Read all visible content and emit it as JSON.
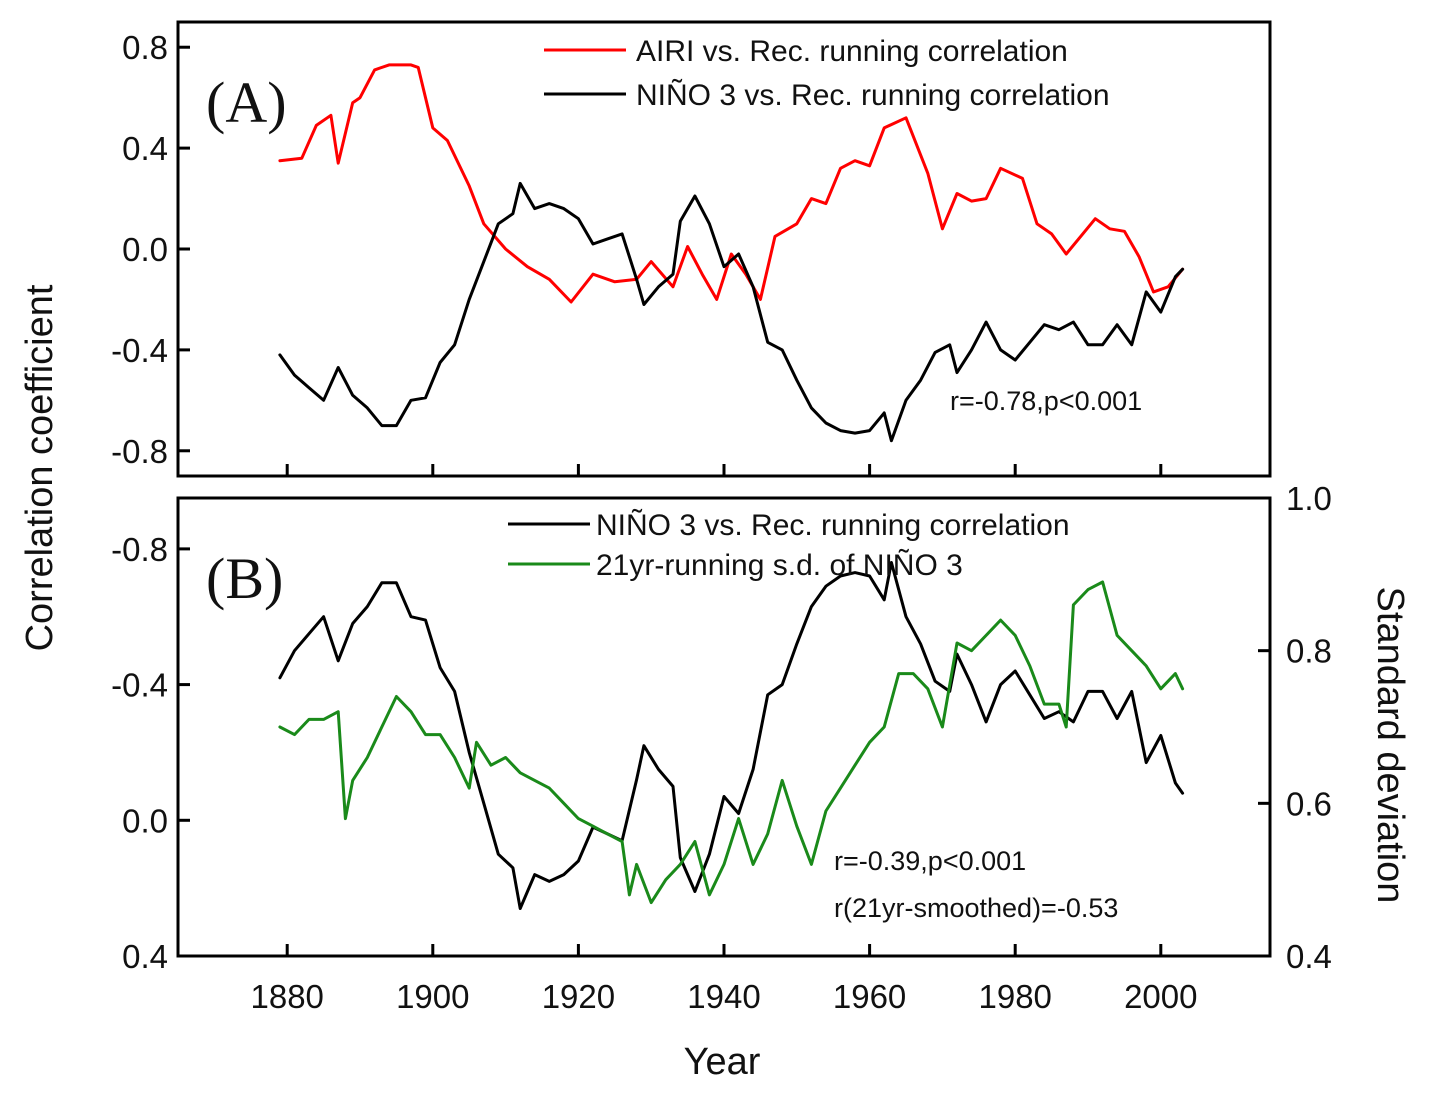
{
  "chart_data": [
    {
      "panel_label": "(A)",
      "type": "line",
      "xlim": [
        1865,
        2015
      ],
      "ylim": [
        -0.9,
        0.9
      ],
      "y_inverted": false,
      "yticks": [
        "0.8",
        "0.4",
        "0.0",
        "-0.4",
        "-0.8"
      ],
      "ytick_values": [
        0.8,
        0.4,
        0.0,
        -0.4,
        -0.8
      ],
      "annotation": "r=-0.78,p<0.001",
      "legend_position": "top-right",
      "series": [
        {
          "name": "AIRI vs. Rec. running correlation",
          "color": "#ff0000",
          "x": [
            1879,
            1882,
            1884,
            1886,
            1887,
            1889,
            1890,
            1892,
            1894,
            1897,
            1898,
            1900,
            1902,
            1905,
            1907,
            1910,
            1913,
            1916,
            1919,
            1922,
            1925,
            1928,
            1930,
            1933,
            1935,
            1937,
            1939,
            1941,
            1943,
            1945,
            1947,
            1950,
            1952,
            1954,
            1956,
            1958,
            1960,
            1962,
            1965,
            1968,
            1970,
            1972,
            1974,
            1976,
            1978,
            1981,
            1983,
            1985,
            1987,
            1989,
            1991,
            1993,
            1995,
            1997,
            1999,
            2001,
            2003
          ],
          "y": [
            0.35,
            0.36,
            0.49,
            0.53,
            0.34,
            0.58,
            0.6,
            0.71,
            0.73,
            0.73,
            0.72,
            0.48,
            0.43,
            0.25,
            0.1,
            0.0,
            -0.07,
            -0.12,
            -0.21,
            -0.1,
            -0.13,
            -0.12,
            -0.05,
            -0.15,
            0.01,
            -0.1,
            -0.2,
            -0.02,
            -0.1,
            -0.2,
            0.05,
            0.1,
            0.2,
            0.18,
            0.32,
            0.35,
            0.33,
            0.48,
            0.52,
            0.3,
            0.08,
            0.22,
            0.19,
            0.2,
            0.32,
            0.28,
            0.1,
            0.06,
            -0.02,
            0.05,
            0.12,
            0.08,
            0.07,
            -0.03,
            -0.17,
            -0.15,
            -0.08
          ]
        },
        {
          "name": "NIÑO 3 vs. Rec. running correlation",
          "color": "#000000",
          "x": [
            1879,
            1881,
            1883,
            1885,
            1887,
            1889,
            1891,
            1893,
            1895,
            1897,
            1899,
            1901,
            1903,
            1905,
            1907,
            1909,
            1911,
            1912,
            1914,
            1916,
            1918,
            1920,
            1922,
            1924,
            1926,
            1928,
            1929,
            1931,
            1933,
            1934,
            1936,
            1938,
            1940,
            1942,
            1944,
            1946,
            1948,
            1950,
            1952,
            1954,
            1956,
            1958,
            1960,
            1962,
            1963,
            1965,
            1967,
            1969,
            1971,
            1972,
            1974,
            1976,
            1978,
            1980,
            1982,
            1984,
            1986,
            1988,
            1990,
            1992,
            1994,
            1996,
            1998,
            2000,
            2002,
            2003
          ],
          "y": [
            -0.42,
            -0.5,
            -0.55,
            -0.6,
            -0.47,
            -0.58,
            -0.63,
            -0.7,
            -0.7,
            -0.6,
            -0.59,
            -0.45,
            -0.38,
            -0.2,
            -0.05,
            0.1,
            0.14,
            0.26,
            0.16,
            0.18,
            0.16,
            0.12,
            0.02,
            0.04,
            0.06,
            -0.12,
            -0.22,
            -0.15,
            -0.1,
            0.11,
            0.21,
            0.1,
            -0.07,
            -0.02,
            -0.15,
            -0.37,
            -0.4,
            -0.52,
            -0.63,
            -0.69,
            -0.72,
            -0.73,
            -0.72,
            -0.65,
            -0.76,
            -0.6,
            -0.52,
            -0.41,
            -0.38,
            -0.49,
            -0.4,
            -0.29,
            -0.4,
            -0.44,
            -0.37,
            -0.3,
            -0.32,
            -0.29,
            -0.38,
            -0.38,
            -0.3,
            -0.38,
            -0.17,
            -0.25,
            -0.11,
            -0.08
          ]
        }
      ]
    },
    {
      "panel_label": "(B)",
      "type": "line",
      "xlim": [
        1865,
        2015
      ],
      "ylim": [
        0.4,
        -0.95
      ],
      "y_inverted": true,
      "yticks": [
        "-0.8",
        "-0.4",
        "0.0",
        "0.4"
      ],
      "ytick_values": [
        -0.8,
        -0.4,
        0.0,
        0.4
      ],
      "ylim_right": [
        0.4,
        1.0
      ],
      "yticks_right": [
        "1.0",
        "0.8",
        "0.6",
        "0.4"
      ],
      "ytick_values_right": [
        1.0,
        0.8,
        0.6,
        0.4
      ],
      "annotation_lines": [
        "r=-0.39,p<0.001",
        "r(21yr-smoothed)=-0.53"
      ],
      "legend_position": "top-center",
      "series": [
        {
          "name": "NIÑO 3 vs. Rec. running correlation",
          "color": "#000000",
          "axis": "left",
          "x": [
            1879,
            1881,
            1883,
            1885,
            1887,
            1889,
            1891,
            1893,
            1895,
            1897,
            1899,
            1901,
            1903,
            1905,
            1907,
            1909,
            1911,
            1912,
            1914,
            1916,
            1918,
            1920,
            1922,
            1924,
            1926,
            1928,
            1929,
            1931,
            1933,
            1934,
            1936,
            1938,
            1940,
            1942,
            1944,
            1946,
            1948,
            1950,
            1952,
            1954,
            1956,
            1958,
            1960,
            1962,
            1963,
            1965,
            1967,
            1969,
            1971,
            1972,
            1974,
            1976,
            1978,
            1980,
            1982,
            1984,
            1986,
            1988,
            1990,
            1992,
            1994,
            1996,
            1998,
            2000,
            2002,
            2003
          ],
          "y": [
            -0.42,
            -0.5,
            -0.55,
            -0.6,
            -0.47,
            -0.58,
            -0.63,
            -0.7,
            -0.7,
            -0.6,
            -0.59,
            -0.45,
            -0.38,
            -0.2,
            -0.05,
            0.1,
            0.14,
            0.26,
            0.16,
            0.18,
            0.16,
            0.12,
            0.02,
            0.04,
            0.06,
            -0.12,
            -0.22,
            -0.15,
            -0.1,
            0.11,
            0.21,
            0.1,
            -0.07,
            -0.02,
            -0.15,
            -0.37,
            -0.4,
            -0.52,
            -0.63,
            -0.69,
            -0.72,
            -0.73,
            -0.72,
            -0.65,
            -0.76,
            -0.6,
            -0.52,
            -0.41,
            -0.38,
            -0.49,
            -0.4,
            -0.29,
            -0.4,
            -0.44,
            -0.37,
            -0.3,
            -0.32,
            -0.29,
            -0.38,
            -0.38,
            -0.3,
            -0.38,
            -0.17,
            -0.25,
            -0.11,
            -0.08
          ]
        },
        {
          "name": "21yr-running s.d. of NIÑO 3",
          "color": "#1a8a1a",
          "axis": "right",
          "x": [
            1879,
            1881,
            1883,
            1885,
            1887,
            1888,
            1889,
            1891,
            1893,
            1895,
            1897,
            1899,
            1901,
            1903,
            1905,
            1906,
            1908,
            1910,
            1912,
            1914,
            1916,
            1918,
            1920,
            1922,
            1924,
            1926,
            1927,
            1928,
            1930,
            1932,
            1934,
            1936,
            1938,
            1940,
            1942,
            1944,
            1946,
            1948,
            1950,
            1952,
            1954,
            1956,
            1958,
            1960,
            1962,
            1964,
            1966,
            1968,
            1970,
            1972,
            1974,
            1976,
            1978,
            1980,
            1982,
            1984,
            1986,
            1987,
            1988,
            1990,
            1992,
            1994,
            1996,
            1998,
            2000,
            2002,
            2003
          ],
          "y": [
            0.7,
            0.69,
            0.71,
            0.71,
            0.72,
            0.58,
            0.63,
            0.66,
            0.7,
            0.74,
            0.72,
            0.69,
            0.69,
            0.66,
            0.62,
            0.68,
            0.65,
            0.66,
            0.64,
            0.63,
            0.62,
            0.6,
            0.58,
            0.57,
            0.56,
            0.55,
            0.48,
            0.52,
            0.47,
            0.5,
            0.52,
            0.55,
            0.48,
            0.52,
            0.58,
            0.52,
            0.56,
            0.63,
            0.57,
            0.52,
            0.59,
            0.62,
            0.65,
            0.68,
            0.7,
            0.77,
            0.77,
            0.75,
            0.7,
            0.81,
            0.8,
            0.82,
            0.84,
            0.82,
            0.78,
            0.73,
            0.73,
            0.7,
            0.86,
            0.88,
            0.89,
            0.82,
            0.8,
            0.78,
            0.75,
            0.77,
            0.75
          ]
        }
      ]
    }
  ],
  "shared": {
    "xticks": [
      "1880",
      "1900",
      "1920",
      "1940",
      "1960",
      "1980",
      "2000"
    ],
    "xtick_values": [
      1880,
      1900,
      1920,
      1940,
      1960,
      1980,
      2000
    ],
    "xlabel": "Year",
    "ylabel": "Correlation coefficient",
    "ylabel_right": "Standard deviation"
  }
}
